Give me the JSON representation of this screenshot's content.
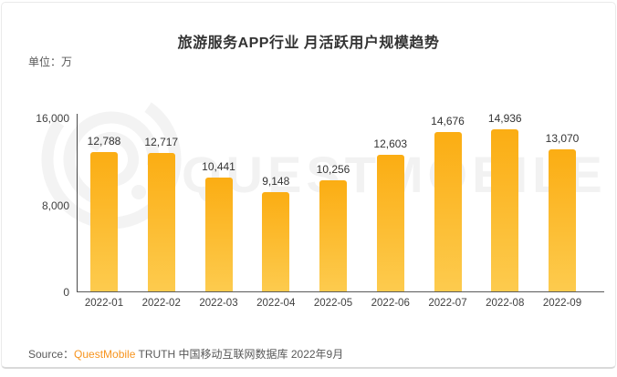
{
  "header": {
    "title": "旅游服务APP行业 月活跃用户规模趋势",
    "unit_label": "单位：万"
  },
  "chart_data": {
    "type": "bar",
    "title": "旅游服务APP行业 月活跃用户规模趋势",
    "unit": "万",
    "categories": [
      "2022-01",
      "2022-02",
      "2022-03",
      "2022-04",
      "2022-05",
      "2022-06",
      "2022-07",
      "2022-08",
      "2022-09"
    ],
    "values": [
      12788,
      12717,
      10441,
      9148,
      10256,
      12603,
      14676,
      14936,
      13070
    ],
    "value_labels": [
      "12,788",
      "12,717",
      "10,441",
      "9,148",
      "10,256",
      "12,603",
      "14,676",
      "14,936",
      "13,070"
    ],
    "ylim": [
      0,
      16000
    ],
    "yticks": [
      {
        "value": 16000,
        "label": "16,000"
      },
      {
        "value": 8000,
        "label": "8,000"
      },
      {
        "value": 0,
        "label": "0"
      }
    ],
    "grid": false,
    "legend_position": "none",
    "bar_color_top": "#FBAD13",
    "bar_color_bottom": "#FDCB4E"
  },
  "watermark": {
    "icon": "questmobile-logo",
    "text": "QUESTMOBILE",
    "color": "#f3f3f3"
  },
  "footer": {
    "source_label": "Source：",
    "brand": "QuestMobile",
    "suffix": " TRUTH 中国移动互联网数据库 2022年9月"
  },
  "colors": {
    "brand_orange": "#F7941E",
    "axis": "#4a4a4a",
    "title_text": "#333333",
    "secondary_text": "#595959"
  }
}
